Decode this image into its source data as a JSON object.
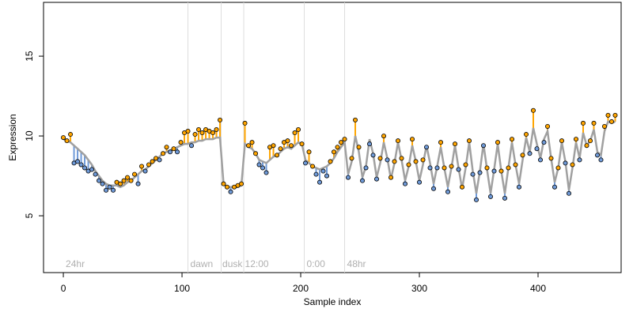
{
  "chart_data": {
    "type": "scatter",
    "xlabel": "Sample index",
    "ylabel": "Expression",
    "xlim": [
      -16.7,
      470
    ],
    "ylim": [
      1.44,
      18.37
    ],
    "xticks": [
      0,
      100,
      200,
      300,
      400
    ],
    "yticks": [
      5,
      10,
      15
    ],
    "x": [
      0,
      3,
      6,
      9,
      12,
      15,
      18,
      21,
      24,
      27,
      30,
      33,
      36,
      39,
      42,
      45,
      48,
      51,
      54,
      57,
      60,
      63,
      66,
      69,
      72,
      75,
      78,
      81,
      84,
      87,
      90,
      93,
      96,
      99,
      102,
      105,
      108,
      111,
      114,
      117,
      120,
      123,
      126,
      129,
      132,
      135,
      138,
      141,
      144,
      147,
      150,
      153,
      156,
      159,
      162,
      165,
      168,
      171,
      174,
      177,
      180,
      183,
      186,
      189,
      192,
      195,
      198,
      201,
      204,
      207,
      210,
      213,
      216,
      219,
      222,
      225,
      228,
      231,
      234,
      237,
      240,
      243,
      246,
      249,
      252,
      255,
      258,
      261,
      264,
      267,
      270,
      273,
      276,
      279,
      282,
      285,
      288,
      291,
      294,
      297,
      300,
      303,
      306,
      309,
      312,
      315,
      318,
      321,
      324,
      327,
      330,
      333,
      336,
      339,
      342,
      345,
      348,
      351,
      354,
      357,
      360,
      363,
      366,
      369,
      372,
      375,
      378,
      381,
      384,
      387,
      390,
      393,
      396,
      399,
      402,
      405,
      408,
      411,
      414,
      417,
      420,
      423,
      426,
      429,
      432,
      435,
      438,
      441,
      444,
      447,
      450,
      453,
      456,
      459,
      462,
      465
    ],
    "values": [
      9.9,
      9.7,
      10.1,
      8.3,
      8.4,
      8.2,
      8.0,
      7.8,
      7.9,
      7.6,
      7.2,
      7.0,
      6.6,
      6.8,
      6.6,
      7.1,
      7.0,
      7.2,
      7.4,
      7.2,
      7.6,
      7.0,
      8.1,
      7.8,
      8.2,
      8.4,
      8.6,
      8.5,
      8.9,
      9.3,
      9.0,
      9.2,
      9.0,
      9.6,
      10.2,
      10.3,
      9.4,
      10.1,
      10.4,
      10.2,
      10.4,
      10.3,
      10.2,
      10.4,
      11.0,
      7.0,
      6.8,
      6.5,
      6.8,
      6.9,
      7.0,
      10.8,
      9.4,
      9.6,
      8.9,
      8.2,
      8.0,
      7.7,
      9.3,
      9.4,
      8.8,
      9.2,
      9.6,
      9.7,
      9.4,
      10.2,
      10.4,
      9.5,
      8.3,
      9.0,
      8.1,
      7.6,
      7.1,
      7.8,
      7.5,
      8.4,
      9.0,
      9.3,
      9.6,
      9.8,
      7.4,
      8.6,
      11.0,
      9.3,
      7.2,
      8.0,
      9.5,
      8.8,
      7.3,
      8.6,
      10.0,
      8.5,
      7.4,
      8.4,
      9.7,
      8.6,
      7.0,
      8.2,
      9.8,
      8.4,
      7.1,
      8.5,
      9.3,
      8.0,
      6.7,
      8.0,
      9.6,
      8.0,
      6.5,
      8.1,
      9.5,
      7.9,
      6.8,
      8.2,
      9.7,
      7.6,
      6.0,
      7.7,
      9.4,
      8.0,
      6.2,
      7.8,
      9.6,
      7.8,
      6.1,
      8.0,
      9.8,
      8.2,
      6.8,
      8.8,
      10.1,
      8.9,
      11.6,
      9.2,
      8.5,
      9.6,
      10.6,
      8.6,
      6.8,
      8.0,
      9.7,
      8.3,
      6.4,
      8.2,
      9.8,
      8.5,
      10.8,
      9.4,
      9.7,
      10.8,
      8.8,
      8.5,
      10.6,
      11.3,
      10.9,
      11.3
    ],
    "fitted": [
      9.8,
      9.7,
      9.6,
      9.4,
      9.2,
      9.0,
      8.8,
      8.5,
      8.2,
      7.8,
      7.5,
      7.2,
      7.0,
      6.9,
      6.9,
      6.9,
      6.8,
      6.9,
      7.1,
      7.2,
      7.4,
      7.6,
      7.8,
      7.9,
      8.1,
      8.3,
      8.5,
      8.7,
      8.9,
      9.0,
      9.1,
      9.2,
      9.3,
      9.4,
      9.5,
      9.5,
      9.6,
      9.6,
      9.7,
      9.7,
      9.8,
      9.8,
      9.8,
      9.9,
      9.9,
      7.0,
      6.8,
      6.8,
      6.8,
      6.8,
      6.9,
      9.5,
      9.3,
      9.2,
      8.9,
      8.5,
      8.4,
      8.3,
      8.5,
      8.7,
      8.8,
      9.0,
      9.2,
      9.3,
      9.2,
      9.4,
      9.6,
      9.5,
      8.5,
      8.3,
      8.1,
      8.0,
      7.9,
      8.0,
      8.1,
      8.3,
      8.6,
      9.0,
      9.3,
      9.6,
      7.6,
      8.4,
      10.0,
      9.0,
      7.4,
      8.1,
      9.8,
      8.9,
      7.4,
      8.3,
      9.6,
      8.6,
      7.3,
      8.3,
      9.6,
      8.5,
      7.2,
      8.1,
      9.4,
      8.4,
      7.2,
      8.2,
      9.4,
      8.3,
      7.0,
      8.1,
      9.3,
      8.0,
      6.8,
      8.0,
      9.4,
      8.0,
      6.7,
      8.0,
      9.6,
      7.8,
      6.4,
      7.8,
      9.5,
      7.9,
      6.4,
      7.9,
      9.5,
      7.8,
      6.4,
      8.0,
      9.6,
      8.2,
      7.0,
      8.5,
      9.9,
      9.0,
      10.5,
      9.5,
      8.6,
      9.8,
      10.3,
      8.6,
      7.1,
      8.0,
      9.6,
      8.4,
      6.6,
      8.0,
      9.6,
      8.6,
      10.2,
      9.4,
      9.7,
      10.4,
      9.0,
      8.8,
      10.3,
      10.9,
      10.8,
      10.9
    ],
    "above_color": "#ffa500",
    "below_color": "#6f9ad8",
    "fit_color": "#a0a0a0",
    "vlines": [
      105,
      133,
      152,
      203,
      237
    ],
    "annotations": [
      {
        "x": 2,
        "text": "24hr"
      },
      {
        "x": 107,
        "text": "dawn"
      },
      {
        "x": 134,
        "text": "dusk"
      },
      {
        "x": 153,
        "text": "12:00"
      },
      {
        "x": 205,
        "text": "0:00"
      },
      {
        "x": 239,
        "text": "48hr"
      }
    ]
  }
}
